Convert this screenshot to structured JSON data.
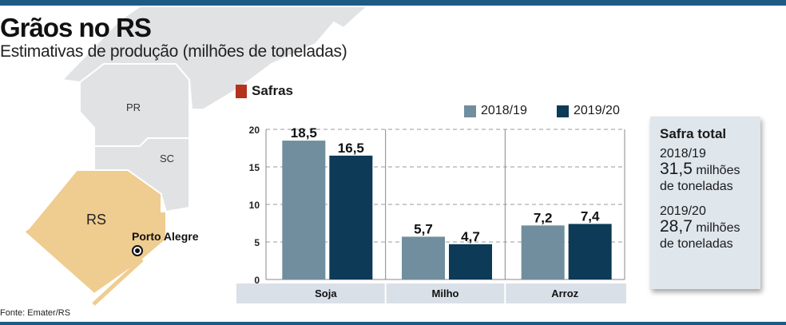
{
  "header": {
    "title": "Grãos no RS",
    "subtitle": "Estimativas de produção (milhões de toneladas)"
  },
  "map": {
    "labels": {
      "pr": "PR",
      "sc": "SC",
      "rs": "RS",
      "city": "Porto Alegre"
    },
    "colors": {
      "highlight": "#efcc90",
      "states": "#e1e2e4"
    }
  },
  "source": "Fonte: Emater/RS",
  "section_label": "Safras",
  "colors": {
    "accent": "#b5321d",
    "bar_2018": "#708e9d",
    "bar_2019": "#0c3a57",
    "frame": "#1d5b84"
  },
  "chart_data": {
    "type": "bar",
    "categories": [
      "Soja",
      "Milho",
      "Arroz"
    ],
    "series": [
      {
        "name": "2018/19",
        "values": [
          18.5,
          5.7,
          7.2
        ],
        "labels": [
          "18,5",
          "5,7",
          "7,2"
        ]
      },
      {
        "name": "2019/20",
        "values": [
          16.5,
          4.7,
          7.4
        ],
        "labels": [
          "16,5",
          "4,7",
          "7,4"
        ]
      }
    ],
    "yticks": [
      "0",
      "5",
      "10",
      "15",
      "20"
    ],
    "ylim": [
      0,
      20
    ],
    "grid": true,
    "legend": "top-right"
  },
  "total": {
    "title": "Safra total",
    "items": [
      {
        "year": "2018/19",
        "value": "31,5",
        "unit": "milhões",
        "unit2": "de toneladas"
      },
      {
        "year": "2019/20",
        "value": "28,7",
        "unit": "milhões",
        "unit2": "de toneladas"
      }
    ]
  }
}
